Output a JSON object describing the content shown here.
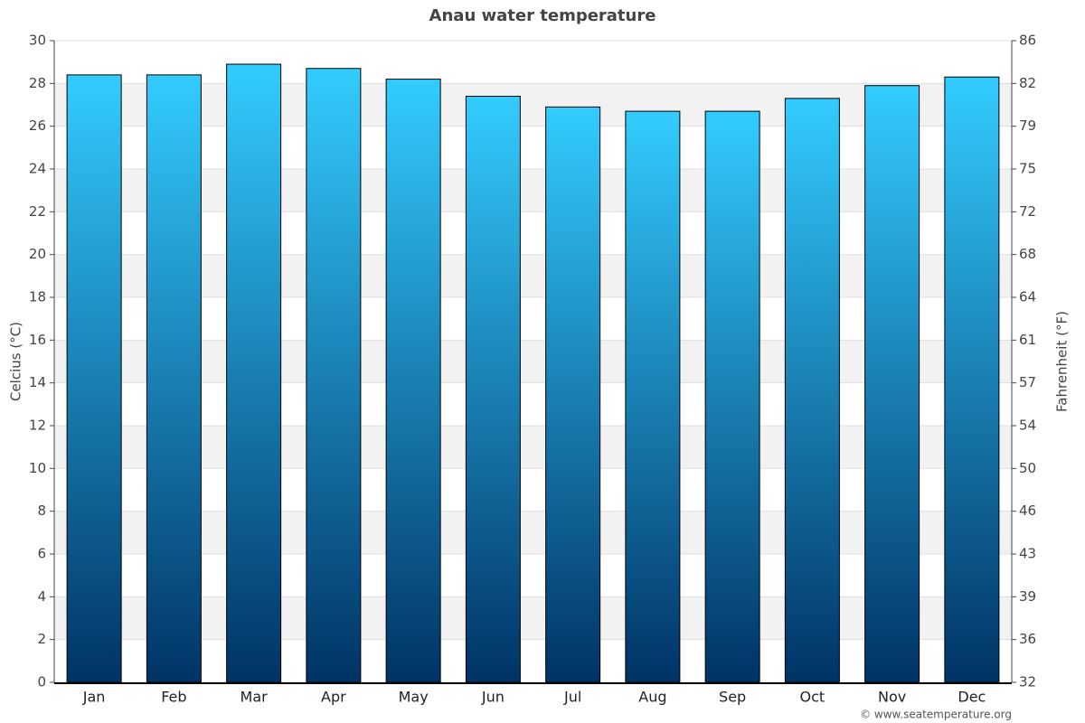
{
  "chart_data": {
    "type": "bar",
    "title": "Anau water temperature",
    "categories": [
      "Jan",
      "Feb",
      "Mar",
      "Apr",
      "May",
      "Jun",
      "Jul",
      "Aug",
      "Sep",
      "Oct",
      "Nov",
      "Dec"
    ],
    "values": [
      28.4,
      28.4,
      28.9,
      28.7,
      28.2,
      27.4,
      26.9,
      26.7,
      26.7,
      27.3,
      27.9,
      28.3
    ],
    "color": [
      "#33ccff",
      "#003366"
    ],
    "y_label": "Celcius (°C)",
    "y2_label": "Fahrenheit (°F)",
    "ylim": [
      0,
      30
    ],
    "yticks": [
      0,
      2,
      4,
      6,
      8,
      10,
      12,
      14,
      16,
      18,
      20,
      22,
      24,
      26,
      28,
      30
    ],
    "y2lim": [
      32,
      86
    ],
    "y2ticks": [
      32,
      {
        "value": 35.6,
        "label": "36"
      },
      {
        "value": 39.2,
        "label": "39"
      },
      {
        "value": 42.8,
        "label": "43"
      },
      {
        "value": 46.4,
        "label": "46"
      },
      50,
      {
        "value": 53.6,
        "label": "54"
      },
      {
        "value": 57.2,
        "label": "57"
      },
      {
        "value": 60.8,
        "label": "61"
      },
      {
        "value": 64.4,
        "label": "64"
      },
      68,
      {
        "value": 71.6,
        "label": "72"
      },
      {
        "value": 75.2,
        "label": "75"
      },
      {
        "value": 78.8,
        "label": "79"
      },
      {
        "value": 82.4,
        "label": "82"
      },
      86
    ],
    "grid": true,
    "source": "© www.seatemperature.org"
  }
}
